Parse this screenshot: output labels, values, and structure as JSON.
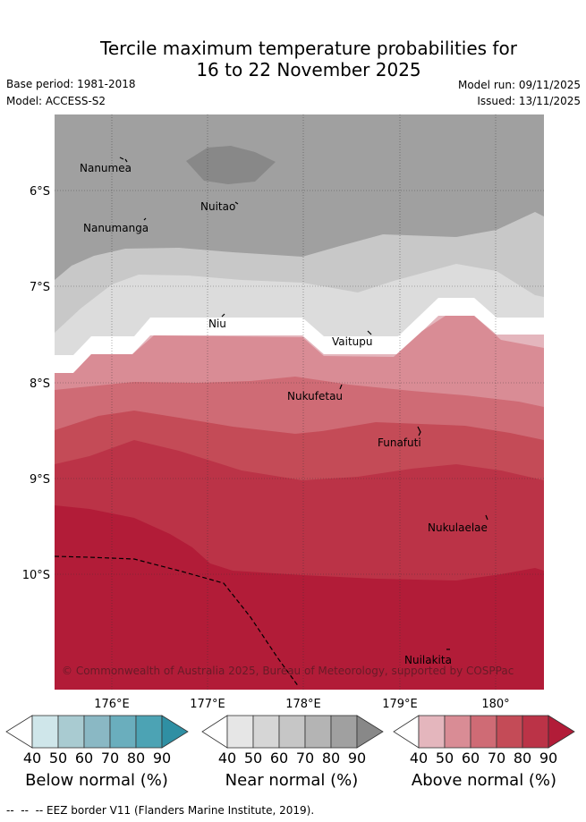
{
  "title": {
    "line1": "Tercile maximum temperature probabilities for",
    "line2": "16 to 22 November 2025"
  },
  "meta": {
    "base_period": "Base period: 1981-2018",
    "model": "Model: ACCESS-S2",
    "model_run": "Model run: 09/11/2025",
    "issued": "Issued: 13/11/2025"
  },
  "map": {
    "lat_labels": [
      "6°S",
      "7°S",
      "8°S",
      "9°S",
      "10°S"
    ],
    "lon_labels": [
      "176°E",
      "177°E",
      "178°E",
      "179°E",
      "180°"
    ],
    "places": [
      "Nanumea",
      "Nuitao",
      "Nanumanga",
      "Niu",
      "Vaitupu",
      "Nukufetau",
      "Funafuti",
      "Nukulaelae",
      "Nuilakita"
    ],
    "copyright": "© Commonwealth of Australia 2025, Bureau of Meteorology, supported by COSPPac",
    "colors": {
      "near_dark": "#888888",
      "near_mid": "#a0a0a0",
      "near_light": "#c8c8c8",
      "near_lightest": "#dcdcdc",
      "above_40": "#e4b6bd",
      "above_50": "#d98c95",
      "above_60": "#cf6b75",
      "above_70": "#c44b57",
      "above_80": "#bb3347",
      "above_90": "#b21c38"
    }
  },
  "colorbars": {
    "ticks": [
      "40",
      "50",
      "60",
      "70",
      "80",
      "90"
    ],
    "below": {
      "label": "Below normal (%)",
      "colors": [
        "#cfe6ea",
        "#a9cbd1",
        "#8ab8c4",
        "#6aaebd",
        "#4ca3b4",
        "#2f8fa3"
      ]
    },
    "near": {
      "label": "Near normal (%)",
      "colors": [
        "#e6e6e6",
        "#d6d6d6",
        "#c6c6c6",
        "#b4b4b4",
        "#a0a0a0",
        "#888888"
      ]
    },
    "above": {
      "label": "Above normal (%)",
      "colors": [
        "#e4b6bd",
        "#d98c95",
        "#cf6b75",
        "#c44b57",
        "#bb3347",
        "#b21c38"
      ]
    }
  },
  "footer": {
    "eez": "--  --  -- EEZ border V11 (Flanders Marine Institute, 2019)."
  }
}
